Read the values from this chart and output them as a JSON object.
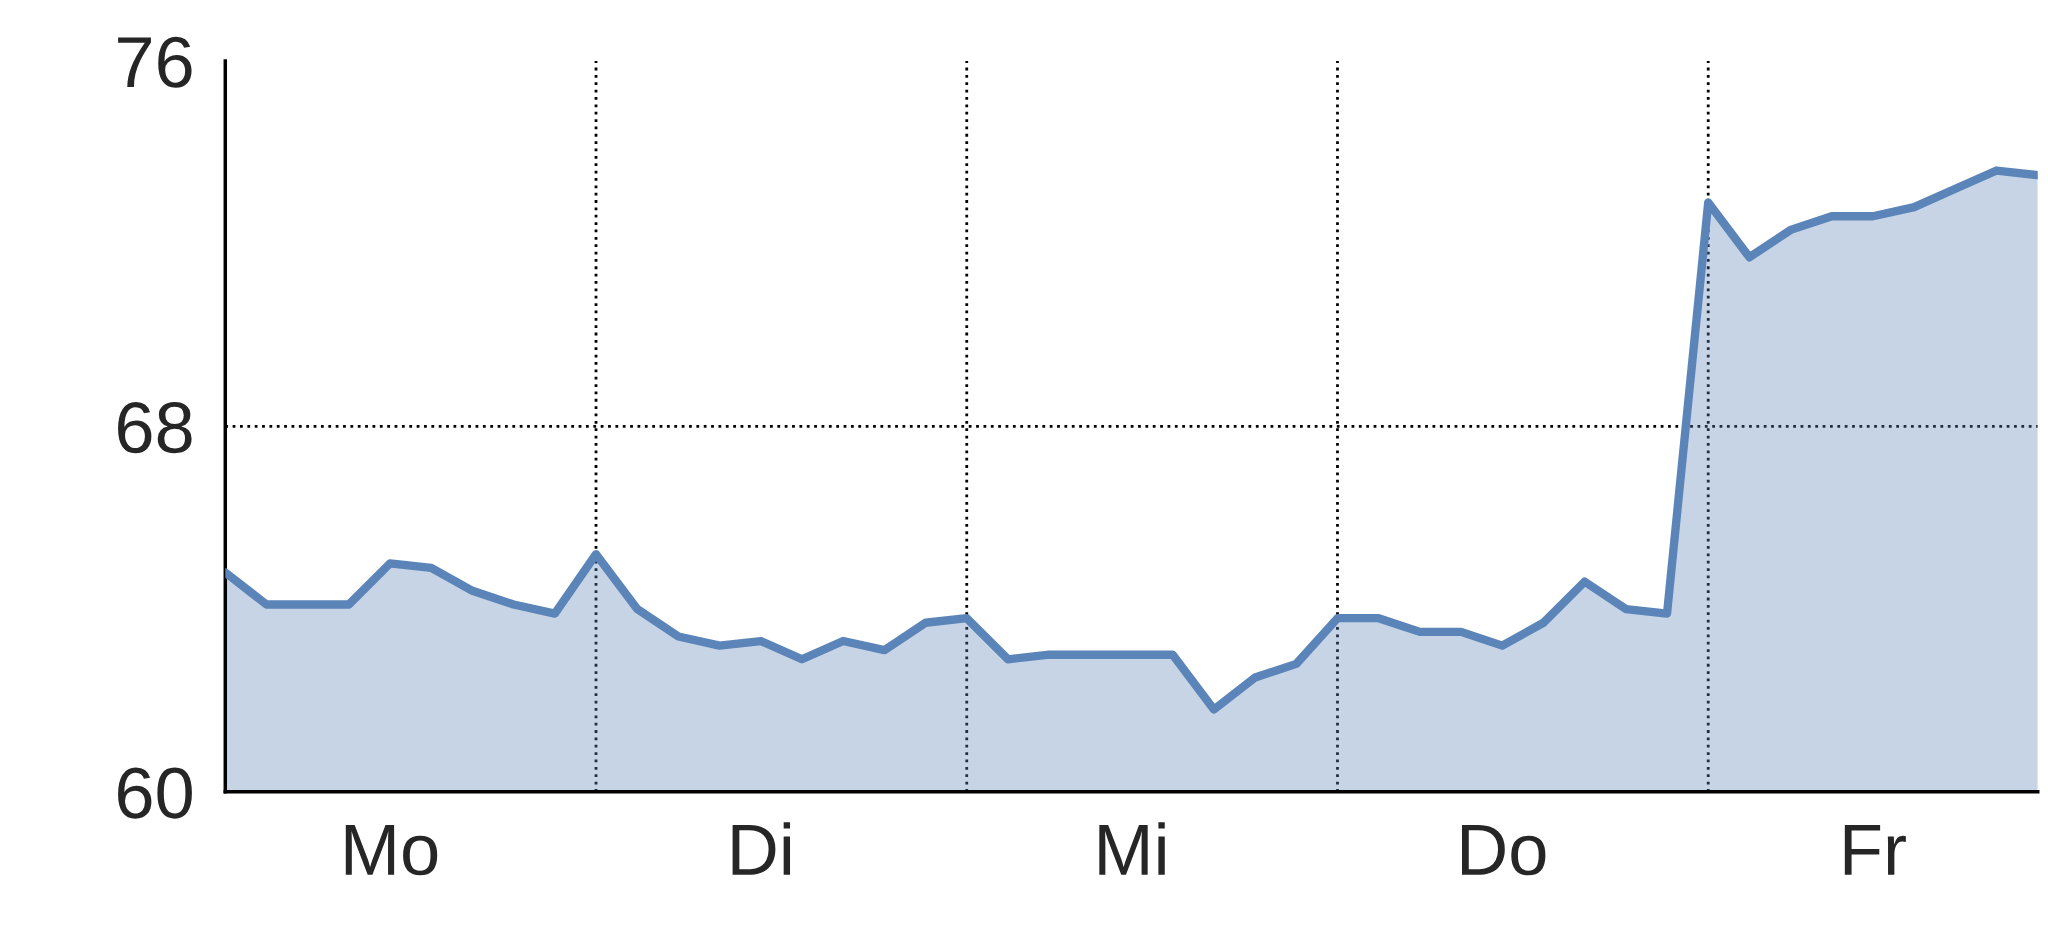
{
  "chart_data": {
    "type": "area",
    "categories": [
      null,
      null,
      null,
      null,
      "Mo",
      null,
      null,
      null,
      null,
      null,
      null,
      null,
      null,
      "Di",
      null,
      null,
      null,
      null,
      null,
      null,
      null,
      null,
      "Mi",
      null,
      null,
      null,
      null,
      null,
      null,
      null,
      null,
      "Do",
      null,
      null,
      null,
      null,
      null,
      null,
      null,
      null,
      "Fr",
      null,
      null,
      null,
      null
    ],
    "series": [
      {
        "color": "#5b84b8",
        "values": [
          64.8,
          64.1,
          64.1,
          64.1,
          65.0,
          64.9,
          64.4,
          64.1,
          63.9,
          65.2,
          64.0,
          63.4,
          63.2,
          63.3,
          62.9,
          63.3,
          63.1,
          63.7,
          63.8,
          62.9,
          63.0,
          63.0,
          63.0,
          63.0,
          61.8,
          62.5,
          62.8,
          63.8,
          63.8,
          63.5,
          63.5,
          63.2,
          63.7,
          64.6,
          64.0,
          63.9,
          72.9,
          71.7,
          72.3,
          72.6,
          72.6,
          72.8,
          73.2,
          73.6,
          73.5
        ]
      }
    ],
    "ylim": [
      60,
      76
    ],
    "yticks": [
      60,
      68,
      76
    ],
    "ref_lines": [
      {
        "axis": "y",
        "value": 68,
        "line_style": "dotted",
        "color": "#000000"
      }
    ]
  }
}
